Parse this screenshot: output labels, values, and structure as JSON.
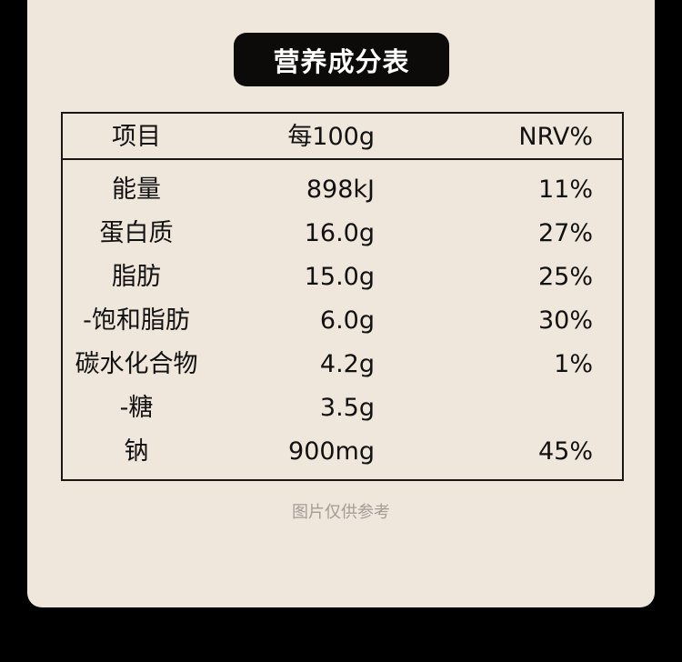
{
  "title": "营养成分表",
  "header": {
    "item": "项目",
    "per100g": "每100g",
    "nrv": "NRV%"
  },
  "rows": [
    {
      "name": "能量",
      "value": "898kJ",
      "nrv": "11%"
    },
    {
      "name": "蛋白质",
      "value": "16.0g",
      "nrv": "27%"
    },
    {
      "name": "脂肪",
      "value": "15.0g",
      "nrv": "25%"
    },
    {
      "name": "-饱和脂肪",
      "value": "6.0g",
      "nrv": "30%"
    },
    {
      "name": "碳水化合物",
      "value": "4.2g",
      "nrv": "1%"
    },
    {
      "name": "-糖",
      "value": "3.5g",
      "nrv": ""
    },
    {
      "name": "钠",
      "value": "900mg",
      "nrv": "45%"
    }
  ],
  "footnote": "图片仅供参考"
}
